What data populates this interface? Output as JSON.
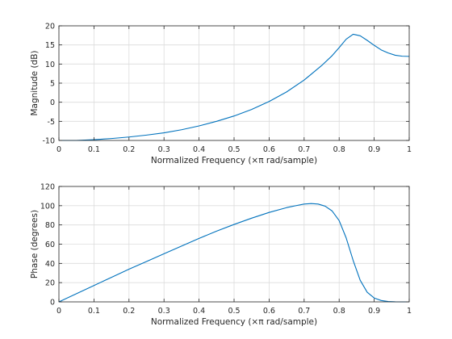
{
  "chart_data": [
    {
      "type": "line",
      "panel": "magnitude",
      "xlabel": "Normalized Frequency  (×π rad/sample)",
      "ylabel": "Magnitude (dB)",
      "xlim": [
        0,
        1
      ],
      "ylim": [
        -10,
        20
      ],
      "xticks": [
        0,
        0.1,
        0.2,
        0.3,
        0.4,
        0.5,
        0.6,
        0.7,
        0.8,
        0.9,
        1
      ],
      "xtick_labels": [
        "0",
        "0.1",
        "0.2",
        "0.3",
        "0.4",
        "0.5",
        "0.6",
        "0.7",
        "0.8",
        "0.9",
        "1"
      ],
      "yticks": [
        -10,
        -5,
        0,
        5,
        10,
        15,
        20
      ],
      "ytick_labels": [
        "-10",
        "-5",
        "0",
        "5",
        "10",
        "15",
        "20"
      ],
      "grid": true,
      "series": [
        {
          "color": "#0072bd",
          "x": [
            0,
            0.05,
            0.1,
            0.15,
            0.2,
            0.25,
            0.3,
            0.35,
            0.4,
            0.45,
            0.5,
            0.55,
            0.6,
            0.65,
            0.7,
            0.75,
            0.78,
            0.8,
            0.82,
            0.84,
            0.86,
            0.88,
            0.9,
            0.92,
            0.94,
            0.96,
            0.98,
            1
          ],
          "y": [
            -10,
            -10,
            -9.8,
            -9.5,
            -9.1,
            -8.6,
            -8,
            -7.2,
            -6.2,
            -5,
            -3.6,
            -1.9,
            0.2,
            2.7,
            5.8,
            9.6,
            12.2,
            14.3,
            16.5,
            17.8,
            17.4,
            16.2,
            14.9,
            13.7,
            12.9,
            12.3,
            12.05,
            12
          ]
        }
      ]
    },
    {
      "type": "line",
      "panel": "phase",
      "xlabel": "Normalized Frequency  (×π rad/sample)",
      "ylabel": "Phase (degrees)",
      "xlim": [
        0,
        1
      ],
      "ylim": [
        0,
        120
      ],
      "xticks": [
        0,
        0.1,
        0.2,
        0.3,
        0.4,
        0.5,
        0.6,
        0.7,
        0.8,
        0.9,
        1
      ],
      "xtick_labels": [
        "0",
        "0.1",
        "0.2",
        "0.3",
        "0.4",
        "0.5",
        "0.6",
        "0.7",
        "0.8",
        "0.9",
        "1"
      ],
      "yticks": [
        0,
        20,
        40,
        60,
        80,
        100,
        120
      ],
      "ytick_labels": [
        "0",
        "20",
        "40",
        "60",
        "80",
        "100",
        "120"
      ],
      "grid": true,
      "series": [
        {
          "color": "#0072bd",
          "x": [
            0,
            0.05,
            0.1,
            0.15,
            0.2,
            0.25,
            0.3,
            0.35,
            0.4,
            0.45,
            0.5,
            0.55,
            0.6,
            0.65,
            0.68,
            0.7,
            0.72,
            0.74,
            0.76,
            0.78,
            0.8,
            0.82,
            0.84,
            0.86,
            0.88,
            0.9,
            0.92,
            0.94,
            0.96,
            0.98,
            1
          ],
          "y": [
            0,
            8.5,
            17,
            25.5,
            34,
            42,
            50,
            58,
            66,
            73.5,
            80.5,
            87,
            93,
            98,
            100.3,
            101.7,
            102.2,
            101.7,
            99.5,
            94.5,
            84.5,
            66.5,
            43,
            22.5,
            10,
            4,
            1.4,
            0.4,
            0.1,
            0,
            0
          ]
        }
      ]
    }
  ]
}
